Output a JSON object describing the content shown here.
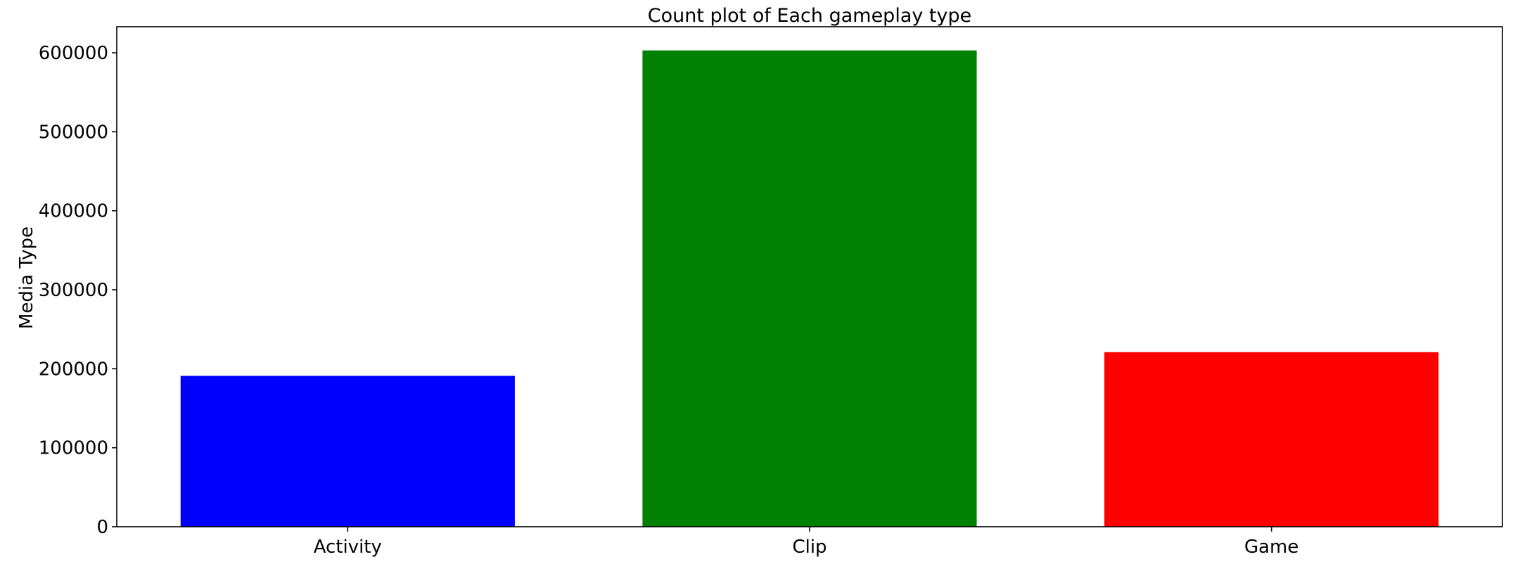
{
  "chart_data": {
    "type": "bar",
    "title": "Count plot of Each gameplay type",
    "xlabel": "",
    "ylabel": "Media Type",
    "categories": [
      "Activity",
      "Clip",
      "Game"
    ],
    "values": [
      191000,
      603000,
      221000
    ],
    "colors": [
      "#0000ff",
      "#008000",
      "#ff0000"
    ],
    "ylim": [
      0,
      633000
    ],
    "yticks": [
      0,
      100000,
      200000,
      300000,
      400000,
      500000,
      600000
    ],
    "ytick_labels": [
      "0",
      "100000",
      "200000",
      "300000",
      "400000",
      "500000",
      "600000"
    ],
    "grid": false,
    "legend": "none"
  }
}
